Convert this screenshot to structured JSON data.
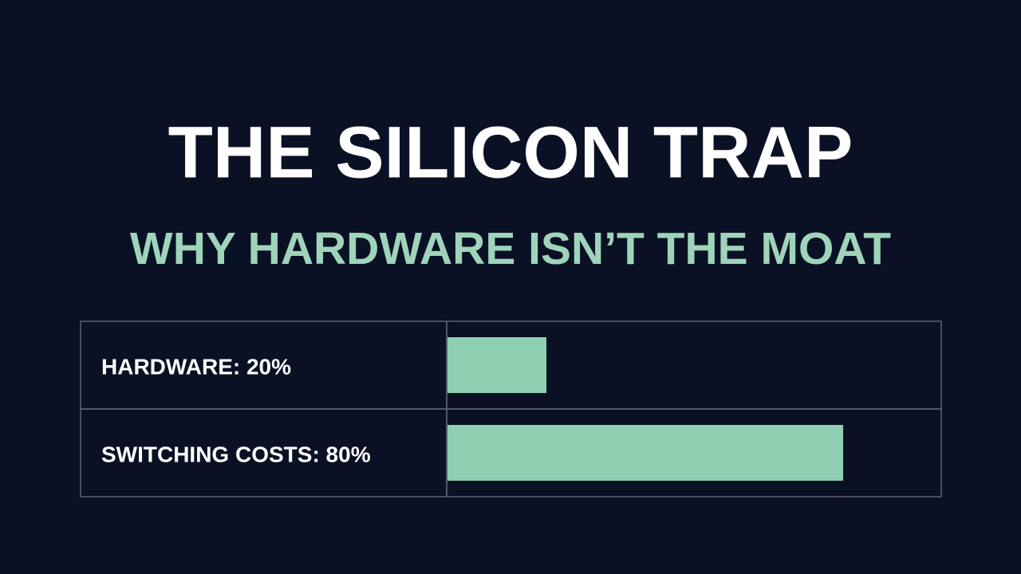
{
  "chart_data": {
    "type": "bar",
    "orientation": "horizontal",
    "title": "THE SILICON TRAP",
    "subtitle": "WHY HARDWARE ISN’T THE MOAT",
    "categories": [
      "HARDWARE: 20%",
      "SWITCHING COSTS: 80%"
    ],
    "values": [
      20,
      80
    ],
    "color": "#8ecfb2",
    "xlim": [
      0,
      100
    ]
  }
}
